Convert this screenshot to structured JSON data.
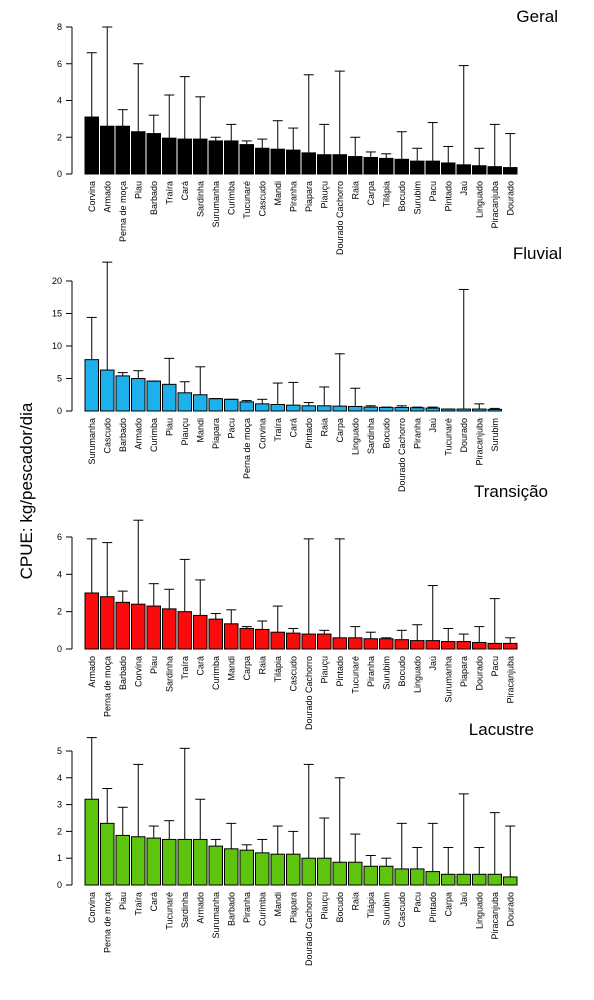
{
  "ylabel": "CPUE: kg/pescador/dia",
  "chart_data": [
    {
      "type": "bar",
      "title": "Geral",
      "color": "#000000",
      "ylim": [
        0,
        8
      ],
      "yticks": [
        0,
        2,
        4,
        6,
        8
      ],
      "categories": [
        "Corvina",
        "Armado",
        "Perna de moça",
        "Piau",
        "Barbado",
        "Traíra",
        "Cará",
        "Sardinha",
        "Surumanha",
        "Curimba",
        "Tucunaré",
        "Cascudo",
        "Mandi",
        "Piranha",
        "Piapara",
        "Piauçu",
        "Dourado Cachorro",
        "Raia",
        "Carpa",
        "Tilápia",
        "Bocudo",
        "Surubim",
        "Pacu",
        "Pintado",
        "Jaú",
        "Linguado",
        "Piracanjuba",
        "Dourado"
      ],
      "values": [
        3.1,
        2.6,
        2.6,
        2.3,
        2.2,
        1.95,
        1.9,
        1.9,
        1.8,
        1.8,
        1.6,
        1.4,
        1.35,
        1.3,
        1.15,
        1.05,
        1.05,
        0.95,
        0.9,
        0.85,
        0.8,
        0.7,
        0.7,
        0.6,
        0.5,
        0.45,
        0.4,
        0.35
      ],
      "err_upper": [
        6.6,
        8.0,
        3.5,
        6.0,
        3.2,
        4.3,
        5.3,
        4.2,
        2.0,
        2.7,
        1.8,
        1.9,
        2.9,
        2.5,
        5.4,
        2.7,
        5.6,
        2.0,
        1.2,
        1.1,
        2.3,
        1.4,
        2.8,
        1.5,
        5.9,
        1.4,
        2.7,
        2.2
      ]
    },
    {
      "type": "bar",
      "title": "Fluvial",
      "color": "#1eb0ec",
      "ylim": [
        0,
        20
      ],
      "yticks": [
        0,
        5,
        10,
        15,
        20
      ],
      "categories": [
        "Surumanha",
        "Cascudo",
        "Barbado",
        "Armado",
        "Curimba",
        "Piau",
        "Piauçu",
        "Mandi",
        "Piapara",
        "Pacu",
        "Perna de moça",
        "Corvina",
        "Traíra",
        "Cará",
        "Pintado",
        "Raia",
        "Carpa",
        "Linguado",
        "Sardinha",
        "Bocudo",
        "Dourado Cachorro",
        "Piranha",
        "Jaú",
        "Tucunaré",
        "Dourado",
        "Piracanjuba",
        "Surubim"
      ],
      "values": [
        7.9,
        6.3,
        5.4,
        5.0,
        4.6,
        4.1,
        2.8,
        2.5,
        1.9,
        1.8,
        1.4,
        1.1,
        1.0,
        0.9,
        0.8,
        0.8,
        0.75,
        0.7,
        0.6,
        0.55,
        0.55,
        0.5,
        0.45,
        0.3,
        0.3,
        0.3,
        0.25
      ],
      "err_upper": [
        14.4,
        22.9,
        5.9,
        6.2,
        4.6,
        8.1,
        4.5,
        6.8,
        1.9,
        1.8,
        1.6,
        1.8,
        4.3,
        4.4,
        1.3,
        3.7,
        8.8,
        3.5,
        0.8,
        0.6,
        0.8,
        0.6,
        0.6,
        0.3,
        18.7,
        1.1,
        0.4
      ]
    },
    {
      "type": "bar",
      "title": "Transição",
      "color": "#fb0b0b",
      "ylim": [
        0,
        6
      ],
      "yticks": [
        0,
        2,
        4,
        6
      ],
      "categories": [
        "Armado",
        "Perna de moça",
        "Barbado",
        "Corvina",
        "Piau",
        "Sardinha",
        "Traíra",
        "Cará",
        "Curimba",
        "Mandi",
        "Carpa",
        "Raia",
        "Tilápia",
        "Cascudo",
        "Dourado Cachorro",
        "Piauçu",
        "Pintado",
        "Tucunaré",
        "Piranha",
        "Surubim",
        "Bocudo",
        "Linguado",
        "Jaú",
        "Surumanha",
        "Piapara",
        "Dourado",
        "Pacu",
        "Piracanjuba"
      ],
      "values": [
        3.0,
        2.8,
        2.5,
        2.4,
        2.3,
        2.15,
        2.0,
        1.8,
        1.6,
        1.35,
        1.1,
        1.05,
        0.9,
        0.85,
        0.8,
        0.8,
        0.6,
        0.6,
        0.55,
        0.55,
        0.5,
        0.45,
        0.45,
        0.4,
        0.4,
        0.35,
        0.3,
        0.3
      ],
      "err_upper": [
        5.9,
        5.7,
        3.1,
        7.8,
        3.5,
        3.2,
        4.8,
        3.7,
        1.9,
        2.1,
        1.2,
        1.5,
        2.3,
        1.1,
        5.9,
        1.0,
        5.9,
        1.2,
        0.9,
        0.6,
        1.0,
        1.3,
        3.4,
        1.1,
        0.8,
        1.2,
        2.7,
        0.6
      ]
    },
    {
      "type": "bar",
      "title": "Lacustre",
      "color": "#5ec40e",
      "ylim": [
        0,
        5
      ],
      "yticks": [
        0,
        1,
        2,
        3,
        4,
        5
      ],
      "categories": [
        "Corvina",
        "Perna de moça",
        "Piau",
        "Traíra",
        "Cará",
        "Tucunaré",
        "Sardinha",
        "Armado",
        "Surumanha",
        "Barbado",
        "Piranha",
        "Curimba",
        "Mandi",
        "Piapara",
        "Dourado Cachorro",
        "Piauçu",
        "Bocudo",
        "Raia",
        "Tilápia",
        "Surubim",
        "Cascudo",
        "Pacu",
        "Pintado",
        "Carpa",
        "Jaú",
        "Linguado",
        "Piracanjuba",
        "Dourado"
      ],
      "values": [
        3.2,
        2.3,
        1.85,
        1.8,
        1.75,
        1.7,
        1.7,
        1.7,
        1.45,
        1.35,
        1.3,
        1.2,
        1.15,
        1.15,
        1.0,
        1.0,
        0.85,
        0.85,
        0.7,
        0.7,
        0.6,
        0.6,
        0.5,
        0.4,
        0.4,
        0.4,
        0.4,
        0.3
      ],
      "err_upper": [
        5.5,
        3.6,
        2.9,
        4.5,
        2.2,
        2.4,
        5.1,
        3.2,
        1.7,
        2.3,
        1.5,
        1.7,
        2.2,
        2.0,
        4.5,
        2.5,
        4.0,
        1.9,
        1.1,
        1.0,
        2.3,
        1.4,
        2.3,
        1.4,
        3.4,
        1.4,
        2.7,
        2.2
      ]
    }
  ]
}
